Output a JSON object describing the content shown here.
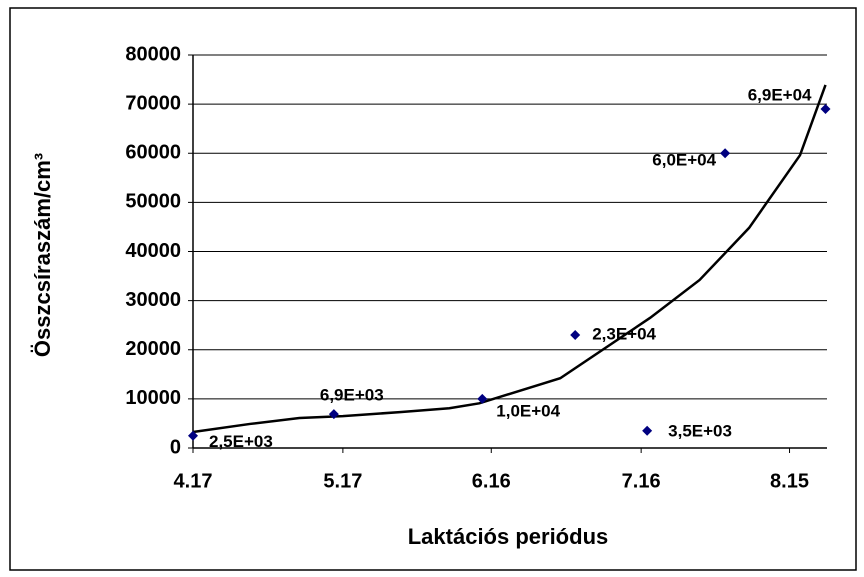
{
  "chart_data": {
    "type": "scatter",
    "x_label": "Laktációs periódus",
    "y_label": "Összcsíraszám/cm³",
    "series": [
      {
        "color": "#000080",
        "x": [
          4.17,
          5.11,
          6.1,
          6.72,
          7.2,
          7.72,
          8.39
        ],
        "values": [
          2500,
          6900,
          10000,
          23000,
          3500,
          60000,
          69000
        ],
        "value_labels": [
          "2,5E+03",
          "6,9E+03",
          "1,0E+04",
          "2,3E+04",
          "3,5E+03",
          "6,0E+04",
          "6,9E+04"
        ]
      }
    ],
    "trendline": {
      "color": "#000000",
      "x": [
        4.17,
        4.55,
        4.88,
        5.17,
        5.55,
        5.88,
        6.08,
        6.62,
        7.22,
        7.55,
        7.88,
        8.22,
        8.39
      ],
      "values": [
        3250,
        4900,
        6100,
        6500,
        7300,
        8100,
        9100,
        14200,
        26500,
        34200,
        44800,
        59600,
        73900
      ]
    },
    "xlim": [
      4.17,
      8.4
    ],
    "xticks": [
      4.17,
      5.17,
      6.16,
      7.16,
      8.15
    ],
    "ylim": [
      0,
      80000
    ],
    "yticks": [
      0,
      10000,
      20000,
      30000,
      40000,
      50000,
      60000,
      70000,
      80000
    ],
    "grid": true
  }
}
